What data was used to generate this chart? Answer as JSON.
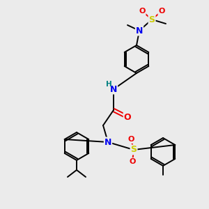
{
  "bg_color": "#ebebeb",
  "atom_colors": {
    "N": "#0000ee",
    "O": "#ee0000",
    "S": "#cccc00",
    "C": "#000000",
    "H": "#008080"
  },
  "bond_color": "#000000",
  "ring_r": 20,
  "lw": 1.4
}
